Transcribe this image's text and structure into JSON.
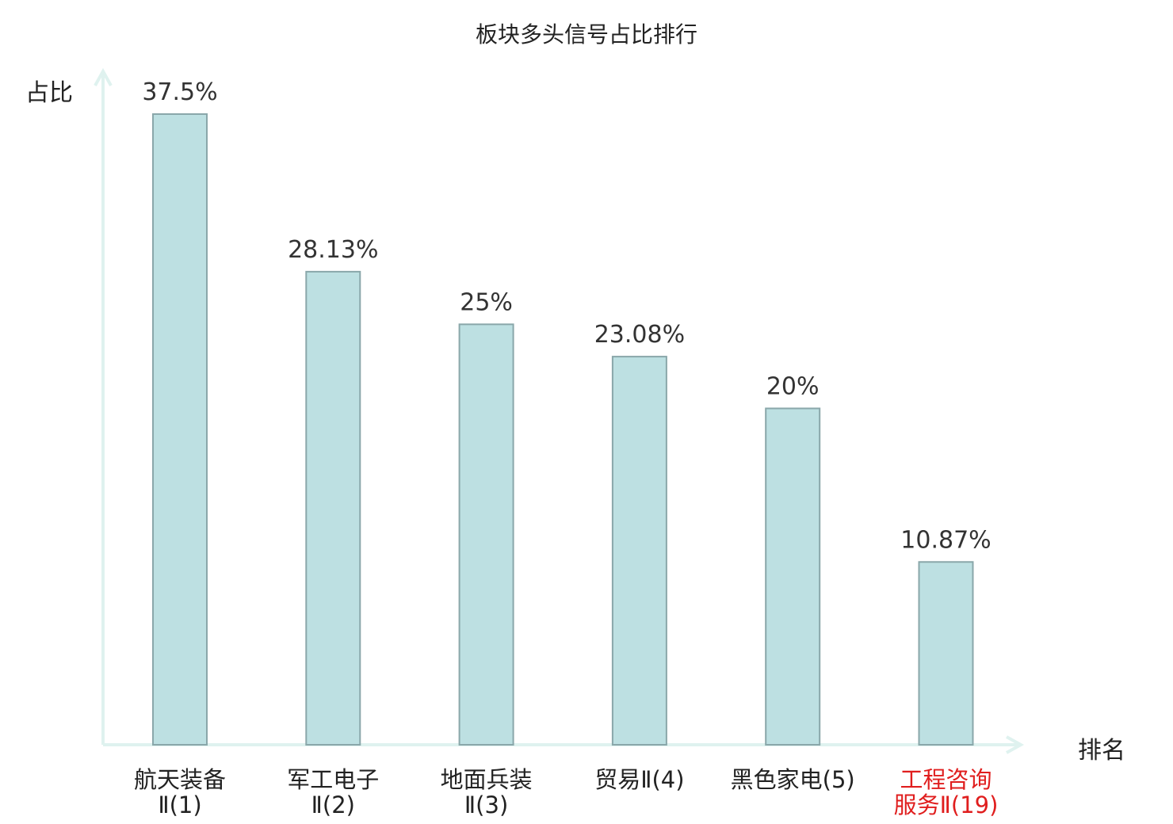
{
  "chart_data": {
    "type": "bar",
    "title": "板块多头信号占比排行",
    "ylabel": "占比",
    "xlabel": "排名",
    "ylim": [
      0,
      40
    ],
    "grid": false,
    "categories": [
      [
        "航天装备",
        "Ⅱ(1)"
      ],
      [
        "军工电子",
        "Ⅱ(2)"
      ],
      [
        "地面兵装",
        "Ⅱ(3)"
      ],
      [
        "贸易Ⅱ(4)"
      ],
      [
        "黑色家电(5)"
      ],
      [
        "工程咨询",
        "服务Ⅱ(19)"
      ]
    ],
    "values": [
      37.5,
      28.13,
      25,
      23.08,
      20,
      10.87
    ],
    "value_labels": [
      "37.5%",
      "28.13%",
      "25%",
      "23.08%",
      "20%",
      "10.87%"
    ],
    "highlight_index": 5,
    "colors": {
      "bar_fill": "#bde0e2",
      "bar_stroke": "#8aa7aa",
      "axis": "#dff2ef",
      "text": "#333333",
      "highlight_text": "#e01e1e"
    }
  }
}
